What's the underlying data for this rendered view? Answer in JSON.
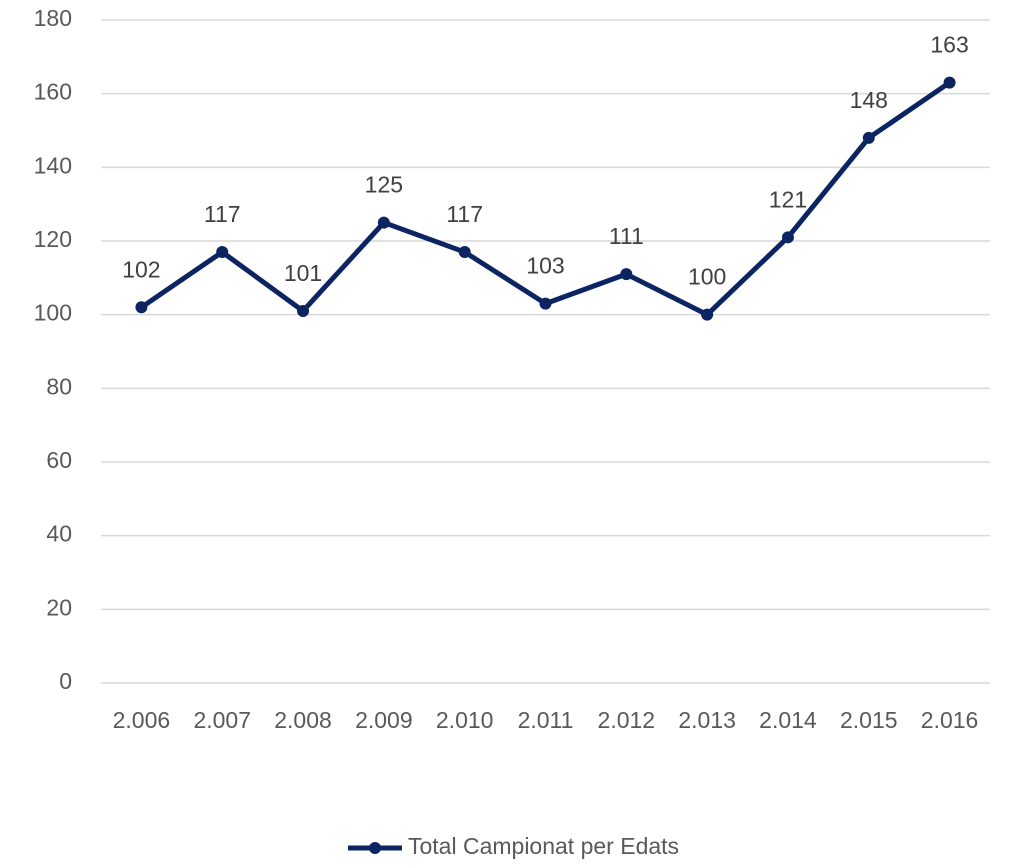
{
  "chart_data": {
    "type": "line",
    "categories": [
      "2.006",
      "2.007",
      "2.008",
      "2.009",
      "2.010",
      "2.011",
      "2.012",
      "2.013",
      "2.014",
      "2.015",
      "2.016"
    ],
    "series": [
      {
        "name": "Total Campionat per Edats",
        "color": "#0c2461",
        "values": [
          102,
          117,
          101,
          125,
          117,
          103,
          111,
          100,
          121,
          148,
          163
        ]
      }
    ],
    "ylim": [
      0,
      180
    ],
    "yticks": [
      0,
      20,
      40,
      60,
      80,
      100,
      120,
      140,
      160,
      180
    ],
    "grid": true,
    "legend": "bottom",
    "data_labels": true
  }
}
